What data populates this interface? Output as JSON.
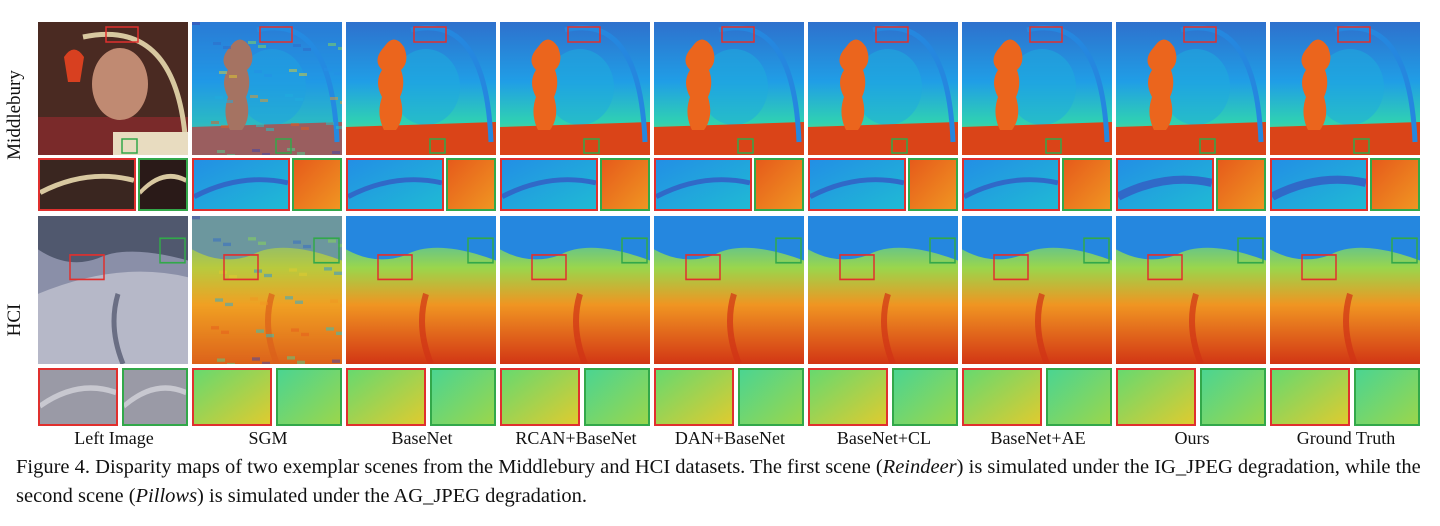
{
  "row_labels": [
    "Middlebury",
    "HCI"
  ],
  "columns": [
    "Left Image",
    "SGM",
    "BaseNet",
    "RCAN+BaseNet",
    "DAN+BaseNet",
    "BaseNet+CL",
    "BaseNet+AE",
    "Ours",
    "Ground Truth"
  ],
  "caption": {
    "prefix": "Figure 4. Disparity maps of two exemplar scenes from the Middlebury and HCI datasets. The first scene (",
    "scene1": "Reindeer",
    "middle": ") is simulated under the IG_JPEG degradation, while the second scene (",
    "scene2": "Pillows",
    "suffix": ") is simulated under the AG_JPEG degradation."
  },
  "colors": {
    "zoom_red": "#e0302e",
    "zoom_green": "#32a84a"
  }
}
